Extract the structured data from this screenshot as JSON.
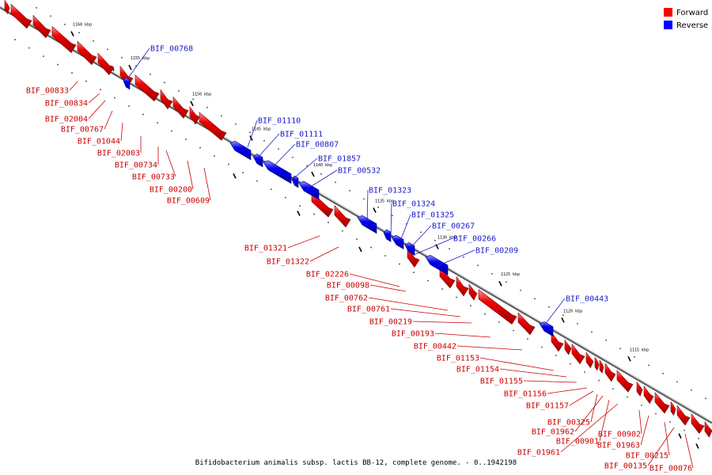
{
  "title": "Bifidobacterium animalis subsp. lactis BB-12, complete genome. - 0..1942198",
  "legend": [
    {
      "label": "Forward",
      "color": "#ff0000"
    },
    {
      "label": "Reverse",
      "color": "#0000ff"
    }
  ],
  "ticks": [
    "1160 kbp",
    "1155 kbp",
    "1150 kbp",
    "1145 kbp",
    "1140 kbp",
    "1135 kbp",
    "1130 kbp",
    "1125 kbp",
    "1120 kbp",
    "1115 kbp"
  ],
  "genes_forward": [
    "BIF_00833",
    "BIF_00834",
    "BIF_02004",
    "BIF_00767",
    "BIF_01044",
    "BIF_02003",
    "BIF_00734",
    "BIF_00733",
    "BIF_00200",
    "BIF_00609",
    "BIF_01321",
    "BIF_01322",
    "BIF_02226",
    "BIF_00098",
    "BIF_00762",
    "BIF_00761",
    "BIF_00219",
    "BIF_00193",
    "BIF_00442",
    "BIF_01153",
    "BIF_01154",
    "BIF_01155",
    "BIF_01156",
    "BIF_01157",
    "BIF_00325",
    "BIF_01962",
    "BIF_00901",
    "BIF_01961",
    "BIF_00902",
    "BIF_01963",
    "BIF_00215",
    "BIF_00135",
    "BIF_00076"
  ],
  "genes_reverse": [
    "BIF_00768",
    "BIF_01110",
    "BIF_01111",
    "BIF_00807",
    "BIF_01857",
    "BIF_00532",
    "BIF_01323",
    "BIF_01324",
    "BIF_01325",
    "BIF_00267",
    "BIF_00266",
    "BIF_00209",
    "BIF_00443"
  ]
}
